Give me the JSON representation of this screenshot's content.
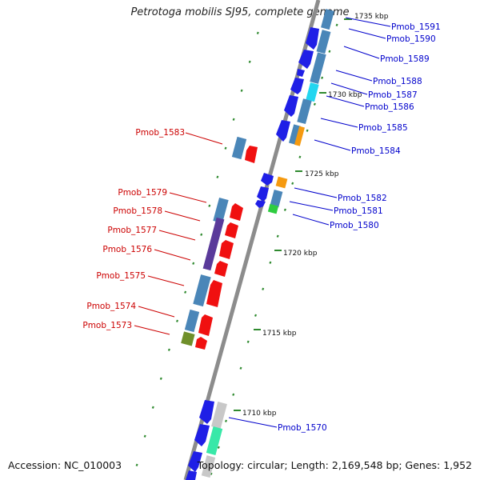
{
  "title": "Petrotoga mobilis SJ95, complete genome",
  "accession": "Accession: NC_010003",
  "topology": "Topology: circular; Length: 2,169,548 bp; Genes: 1,952",
  "colors": {
    "axis": "#8c8c8c",
    "dots": "#2f8a2f",
    "forward_label": "#0000cc",
    "reverse_label": "#cc0000",
    "blue": "#1f1fe6",
    "steel": "#4a86b8",
    "red": "#f01010",
    "orange": "#f59a10",
    "cyan": "#22d6f0",
    "green": "#2ecc40",
    "olive": "#6f8f2a",
    "gray": "#c8c8c8",
    "mint": "#38e8a8",
    "purple": "#5a3a9a"
  },
  "ticks": [
    "1735 kbp",
    "1730 kbp",
    "1725 kbp",
    "1720 kbp",
    "1715 kbp",
    "1710 kbp"
  ],
  "forward_labels": [
    "Pmob_1591",
    "Pmob_1590",
    "Pmob_1589",
    "Pmob_1588",
    "Pmob_1587",
    "Pmob_1586",
    "Pmob_1585",
    "Pmob_1584",
    "Pmob_1582",
    "Pmob_1581",
    "Pmob_1580",
    "Pmob_1570"
  ],
  "reverse_labels": [
    "Pmob_1583",
    "Pmob_1579",
    "Pmob_1578",
    "Pmob_1577",
    "Pmob_1576",
    "Pmob_1575",
    "Pmob_1574",
    "Pmob_1573"
  ]
}
